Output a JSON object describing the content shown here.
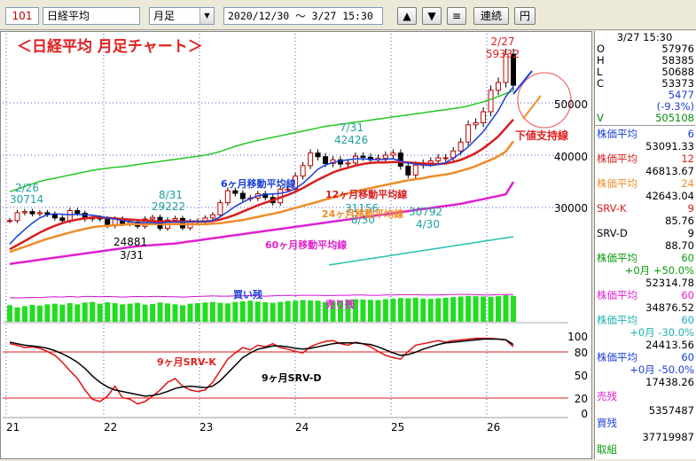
{
  "toolbar": {
    "code": "101",
    "name": "日経平均",
    "period": "月足",
    "range": "2020/12/30 ～ 3/27 15:30",
    "up_icon": "▲",
    "down_icon": "▼",
    "menu_icon": "≡",
    "continuous_label": "連続",
    "yen_label": "円"
  },
  "chart_title": "＜日経平均  月足チャート＞",
  "annotations": {
    "peak_date": "2/27",
    "peak_value": "59332",
    "a1_date": "2/26",
    "a1_value": "30714",
    "a2_date": "8/31",
    "a2_value": "29222",
    "a3_value": "24881",
    "a3_date": "3/31",
    "a4_date": "7/31",
    "a4_value": "42426",
    "a5_value": "31156",
    "a5_date": "8/30",
    "a6_value": "30792",
    "a6_date": "4/30",
    "ma6_label": "6ヶ月移動平均線",
    "ma12_label": "12ヶ月移動平均線",
    "ma24_label": "24ヶ月移動平均線",
    "ma60_label": "60ヶ月移動平均線",
    "support_label": "下値支持線",
    "buy_label": "買い残",
    "sell_label": "売り残",
    "srvk_label": "9ヶ月SRV-K",
    "srvd_label": "9ヶ月SRV-D"
  },
  "price_axis": [
    "50000",
    "40000",
    "30000"
  ],
  "osc_axis": [
    "100",
    "80",
    "50",
    "20",
    "0"
  ],
  "x_axis": [
    "21",
    "22",
    "23",
    "24",
    "25",
    "26"
  ],
  "right_panel": {
    "time": "3/27 15:30",
    "open_label": "O",
    "open": "57976",
    "high_label": "H",
    "high": "58385",
    "low_label": "L",
    "low": "50688",
    "close_label": "C",
    "close": "53373",
    "change": "5477",
    "change_pct": "(-9.3%)",
    "volume_label": "V",
    "volume": "505108",
    "ma6_label": "株価平均",
    "ma6_n": "6",
    "ma6_val": "53091.33",
    "ma12_label": "株価平均",
    "ma12_n": "12",
    "ma12_val": "46813.67",
    "ma24_label": "株価平均",
    "ma24_n": "24",
    "ma24_val": "42643.04",
    "srvk_label": "SRV-K",
    "srvk_n": "9",
    "srvk_val": "85.76",
    "srvd_label": "SRV-D",
    "srvd_n": "9",
    "srvd_val": "88.70",
    "ma60a_label": "株価平均",
    "ma60a_n": "60",
    "ma60a_sub": "+0月 +50.0%",
    "ma60a_val": "52314.78",
    "ma60b_label": "株価平均",
    "ma60b_n": "60",
    "ma60b_val": "34876.52",
    "ma60c_label": "株価平均",
    "ma60c_n": "60",
    "ma60c_sub": "+0月 -30.0%",
    "ma60c_val": "24413.56",
    "ma60d_label": "株価平均",
    "ma60d_n": "60",
    "ma60d_sub": "+0月 -50.0%",
    "ma60d_val": "17438.26",
    "sell_label": "売残",
    "sell_val": "5357487",
    "buy_label": "買残",
    "buy_val": "37719987",
    "extra_label": "取組"
  },
  "colors": {
    "candle_up": "#c00000",
    "ma6": "#1a3fd6",
    "ma12": "#d81e1e",
    "ma24": "#f08c28",
    "ma60": "#e020d0",
    "upper_band": "#22c822",
    "lower_band": "#20c0b0",
    "buy_bar": "#22dd22",
    "sell_line": "#d010d0",
    "srvk": "#e01010",
    "srvd": "#000000"
  },
  "chart_data": {
    "type": "line",
    "x_ticks": [
      "21",
      "22",
      "23",
      "24",
      "25",
      "26"
    ],
    "close": [
      27500,
      29000,
      29200,
      28800,
      29000,
      28700,
      28000,
      27500,
      29400,
      28900,
      27800,
      28000,
      27800,
      26500,
      27800,
      26900,
      27200,
      26400,
      27800,
      28100,
      26000,
      27600,
      27900,
      26100,
      27300,
      27400,
      28000,
      28600,
      30900,
      33200,
      32700,
      31700,
      31800,
      32600,
      31900,
      30900,
      33500,
      33500,
      36000,
      38000,
      40400,
      39700,
      38400,
      39100,
      38300,
      38500,
      39800,
      39600,
      39100,
      39400,
      40000,
      40400,
      37900,
      36200,
      38100,
      38500,
      38900,
      39500,
      39500,
      40800,
      42500,
      45800,
      46200,
      48300,
      52400,
      53900,
      59300,
      53373
    ],
    "ma6": [
      23000,
      24500,
      25800,
      27000,
      28000,
      28600,
      28800,
      28700,
      28600,
      28700,
      28600,
      28500,
      28300,
      28000,
      27800,
      27500,
      27300,
      27100,
      27100,
      27100,
      27000,
      27200,
      27200,
      27200,
      27300,
      27300,
      27300,
      27500,
      28200,
      29200,
      30200,
      31000,
      31700,
      32200,
      32500,
      32600,
      32700,
      33000,
      33600,
      34600,
      35900,
      37300,
      38100,
      38600,
      38900,
      39100,
      39300,
      39300,
      39200,
      39100,
      39200,
      39300,
      38900,
      38500,
      38300,
      38100,
      38000,
      38200,
      38600,
      39400,
      40400,
      41600,
      43000,
      44500,
      46500,
      48500,
      51200,
      53091
    ],
    "ma12": [
      22000,
      22800,
      23600,
      24400,
      25200,
      25900,
      26500,
      27000,
      27400,
      27700,
      27900,
      28100,
      28100,
      28000,
      27900,
      27800,
      27700,
      27600,
      27500,
      27400,
      27300,
      27300,
      27300,
      27300,
      27300,
      27300,
      27300,
      27400,
      27700,
      28100,
      28600,
      29200,
      29800,
      30400,
      30900,
      31400,
      31900,
      32400,
      33000,
      33700,
      34500,
      35300,
      36000,
      36700,
      37200,
      37600,
      38000,
      38300,
      38500,
      38600,
      38600,
      38700,
      38700,
      38600,
      38500,
      38400,
      38300,
      38300,
      38400,
      38700,
      39100,
      39700,
      40400,
      41300,
      42400,
      43600,
      45200,
      46814
    ],
    "ma24": [
      21500,
      22000,
      22500,
      23000,
      23500,
      24000,
      24400,
      24800,
      25200,
      25600,
      25900,
      26200,
      26400,
      26500,
      26600,
      26700,
      26800,
      26800,
      26800,
      26800,
      26800,
      26800,
      26800,
      26800,
      26800,
      26800,
      26800,
      26900,
      27000,
      27200,
      27400,
      27600,
      27900,
      28200,
      28500,
      28800,
      29100,
      29500,
      29900,
      30300,
      30700,
      31100,
      31500,
      31900,
      32300,
      32700,
      33000,
      33400,
      33700,
      34000,
      34300,
      34600,
      34900,
      35200,
      35400,
      35600,
      35900,
      36100,
      36300,
      36600,
      37000,
      37400,
      37900,
      38500,
      39100,
      39800,
      40700,
      42643
    ],
    "ma60": [
      19200,
      19400,
      19600,
      19800,
      20000,
      20200,
      20400,
      20600,
      20800,
      21000,
      21200,
      21400,
      21600,
      21800,
      22000,
      22200,
      22400,
      22600,
      22700,
      22800,
      22900,
      23000,
      23100,
      23300,
      23500,
      23700,
      23900,
      24100,
      24300,
      24500,
      24700,
      24900,
      25100,
      25300,
      25500,
      25700,
      25900,
      26100,
      26300,
      26500,
      26700,
      26900,
      27100,
      27300,
      27500,
      27700,
      27900,
      28100,
      28300,
      28500,
      28700,
      28900,
      29100,
      29300,
      29500,
      29700,
      29900,
      30100,
      30300,
      30500,
      30700,
      31000,
      31300,
      31600,
      31900,
      32200,
      32500,
      34877
    ],
    "upper_band": [
      33000,
      33500,
      34000,
      34500,
      35000,
      35300,
      35600,
      35900,
      36200,
      36500,
      36800,
      37100,
      37300,
      37500,
      37700,
      37800,
      38000,
      38200,
      38400,
      38600,
      38800,
      39000,
      39200,
      39400,
      39600,
      39800,
      40000,
      40300,
      40700,
      41200,
      41700,
      42100,
      42500,
      42800,
      43100,
      43400,
      43700,
      44000,
      44300,
      44600,
      44900,
      45200,
      45500,
      45700,
      45900,
      46100,
      46300,
      46500,
      46700,
      46900,
      47100,
      47300,
      47500,
      47700,
      47900,
      48100,
      48300,
      48500,
      48700,
      48900,
      49100,
      49400,
      49800,
      50200,
      50700,
      51200,
      51800,
      52315
    ],
    "lower_band_start": 19000,
    "lower_band_end": 24414,
    "osc_k": [
      90,
      88,
      85,
      86,
      84,
      80,
      75,
      66,
      55,
      45,
      30,
      18,
      15,
      22,
      35,
      20,
      18,
      12,
      15,
      22,
      30,
      40,
      45,
      35,
      30,
      28,
      30,
      40,
      55,
      70,
      78,
      85,
      82,
      88,
      86,
      90,
      85,
      83,
      80,
      78,
      86,
      90,
      93,
      94,
      90,
      88,
      92,
      90,
      86,
      80,
      75,
      72,
      70,
      80,
      88,
      90,
      92,
      94,
      92,
      94,
      95,
      96,
      97,
      97,
      97,
      96,
      95,
      86
    ],
    "osc_d": [
      92,
      90,
      88,
      87,
      86,
      84,
      81,
      77,
      72,
      66,
      58,
      48,
      40,
      34,
      30,
      28,
      26,
      24,
      22,
      23,
      25,
      28,
      32,
      34,
      35,
      34,
      33,
      35,
      42,
      52,
      62,
      72,
      78,
      83,
      85,
      87,
      87,
      86,
      84,
      83,
      84,
      86,
      88,
      90,
      91,
      91,
      91,
      90,
      89,
      86,
      82,
      78,
      75,
      76,
      79,
      83,
      86,
      89,
      91,
      92,
      93,
      94,
      95,
      96,
      96,
      96,
      95,
      89
    ],
    "buy_bars": [
      55,
      48,
      52,
      56,
      54,
      58,
      60,
      57,
      62,
      58,
      64,
      66,
      60,
      65,
      62,
      58,
      60,
      63,
      57,
      59,
      64,
      61,
      58,
      55,
      60,
      62,
      64,
      66,
      63,
      61,
      66,
      68,
      70,
      67,
      65,
      63,
      66,
      69,
      70,
      72,
      71,
      70,
      66,
      68,
      70,
      72,
      75,
      74,
      73,
      72,
      75,
      77,
      79,
      78,
      80,
      77,
      76,
      78,
      80,
      82,
      84,
      86,
      85,
      84,
      83,
      85,
      88,
      86
    ],
    "sell_line": [
      80,
      79,
      80,
      81,
      80,
      82,
      83,
      82,
      84,
      82,
      84,
      84,
      83,
      84,
      83,
      82,
      83,
      84,
      83,
      84,
      84,
      83,
      83,
      82,
      83,
      84,
      85,
      86,
      85,
      85,
      86,
      86,
      87,
      86,
      85,
      86,
      87,
      88,
      87,
      88,
      88,
      88,
      87,
      87,
      88,
      88,
      89,
      89,
      88,
      88,
      89,
      89,
      90,
      90,
      90,
      89,
      89,
      89,
      90,
      91,
      91,
      91,
      90,
      89,
      89,
      90,
      91,
      90
    ]
  }
}
